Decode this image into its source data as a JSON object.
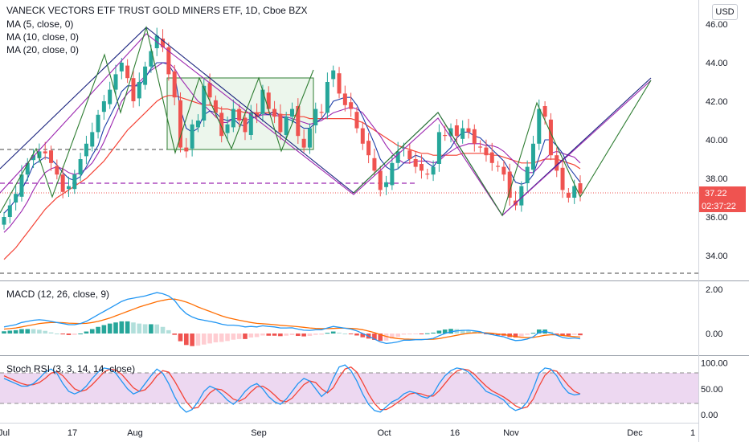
{
  "legend": {
    "title": "VANECK VECTORS ETF TRUST GOLD MINERS ETF, 1D, Cboe BZX",
    "ma5": "MA (5, close, 0)",
    "ma10": "MA (10, close, 0)",
    "ma20": "MA (20, close, 0)",
    "macd": "MACD (12, 26, close, 9)",
    "stoch": "Stoch RSI (3, 3, 14, 14, close)"
  },
  "currency_button": "USD",
  "price_tag": "37.22",
  "countdown_tag": "02:37:22",
  "colors": {
    "up": "#26a69a",
    "down": "#ef5350",
    "ma5": "#1e3ea8",
    "ma10": "#9c27b0",
    "ma20": "#f44336",
    "pattern_blue": "#1a237e",
    "pattern_purple": "#9c27b0",
    "pattern_green": "#2e7d32",
    "macd_line": "#2196f3",
    "signal_line": "#ff6d00",
    "stoch_k": "#2196f3",
    "stoch_d": "#f44336",
    "stoch_band": "#e1bee7",
    "price_tag": "#ef5350"
  },
  "chart_data": [
    {
      "type": "candlestick",
      "title": "VANECK VECTORS ETF TRUST GOLD MINERS ETF, 1D, Cboe BZX",
      "y_ticks": [
        "46.00",
        "44.00",
        "42.00",
        "40.00",
        "38.00",
        "36.00",
        "34.00"
      ],
      "ylim": [
        32.8,
        47.3
      ],
      "x_ticks": [
        "Jul",
        "17",
        "Aug",
        "Sep",
        "Oct",
        "16",
        "Nov",
        "Dec",
        "1"
      ],
      "last_price": 37.22,
      "close": [
        36.0,
        36.6,
        37.2,
        38.2,
        38.8,
        39.2,
        39.4,
        39.3,
        38.8,
        38.2,
        37.3,
        37.6,
        38.2,
        39.0,
        39.8,
        40.4,
        41.3,
        42.0,
        42.6,
        43.4,
        44.0,
        43.2,
        42.0,
        43.0,
        43.8,
        44.6,
        45.4,
        44.8,
        43.4,
        42.2,
        39.6,
        39.4,
        40.8,
        41.0,
        42.8,
        42.2,
        41.4,
        40.2,
        40.8,
        41.6,
        41.0,
        40.4,
        41.4,
        41.2,
        42.6,
        41.6,
        41.2,
        40.4,
        41.2,
        41.6,
        40.2,
        39.6,
        40.6,
        41.6,
        41.4,
        43.0,
        43.6,
        42.4,
        41.8,
        41.6,
        40.6,
        39.8,
        39.2,
        38.4,
        37.4,
        37.8,
        38.8,
        39.4,
        39.6,
        39.0,
        38.6,
        38.4,
        38.2,
        38.6,
        40.4,
        40.2,
        40.6,
        40.2,
        40.6,
        40.4,
        39.8,
        39.6,
        39.2,
        38.8,
        38.6,
        38.2,
        37.0,
        36.6,
        37.6,
        38.6,
        39.8,
        41.6,
        41.2,
        39.2,
        38.4,
        37.4,
        37.0,
        37.6,
        37.22
      ],
      "ma5": [
        36.2,
        36.5,
        36.9,
        37.4,
        38.0,
        38.7,
        38.9,
        39.1,
        39.0,
        38.7,
        38.3,
        38.0,
        37.9,
        38.1,
        38.6,
        39.2,
        39.7,
        40.6,
        41.2,
        41.8,
        42.5,
        42.8,
        42.8,
        42.8,
        43.2,
        43.7,
        44.0,
        44.0,
        43.9,
        43.4,
        41.6,
        40.6,
        40.4,
        40.6,
        41.3,
        41.5,
        41.4,
        41.1,
        41.0,
        41.1,
        40.8,
        40.7,
        41.1,
        41.2,
        41.4,
        41.3,
        41.5,
        41.2,
        41.1,
        41.0,
        40.8,
        40.6,
        40.6,
        40.9,
        41.1,
        41.5,
        42.0,
        42.1,
        42.2,
        42.2,
        41.8,
        41.2,
        40.5,
        39.8,
        39.0,
        38.6,
        38.4,
        38.5,
        38.8,
        39.0,
        39.2,
        39.1,
        38.8,
        38.6,
        39.0,
        39.3,
        39.6,
        40.1,
        40.4,
        40.4,
        40.2,
        40.1,
        39.8,
        39.5,
        39.2,
        38.9,
        38.4,
        37.8,
        37.7,
        37.8,
        38.2,
        39.1,
        40.0,
        40.0,
        39.7,
        39.3,
        38.6,
        38.2,
        37.8
      ],
      "ma10": [
        35.2,
        35.5,
        35.9,
        36.3,
        36.8,
        37.4,
        37.9,
        38.3,
        38.5,
        38.6,
        38.5,
        38.3,
        38.2,
        38.3,
        38.5,
        38.8,
        39.3,
        39.9,
        40.6,
        41.3,
        42.0,
        42.4,
        42.7,
        43.0,
        43.3,
        43.6,
        43.8,
        44.0,
        44.0,
        43.7,
        43.2,
        42.8,
        42.4,
        42.0,
        41.8,
        41.5,
        41.2,
        40.9,
        40.9,
        41.1,
        41.1,
        41.0,
        41.1,
        41.2,
        41.3,
        41.3,
        41.3,
        41.2,
        41.2,
        41.1,
        41.0,
        40.9,
        40.8,
        40.9,
        41.0,
        41.2,
        41.4,
        41.5,
        41.6,
        41.7,
        41.6,
        41.4,
        41.0,
        40.6,
        40.2,
        39.7,
        39.3,
        39.0,
        38.8,
        38.8,
        38.9,
        38.9,
        38.9,
        38.8,
        38.9,
        39.2,
        39.4,
        39.6,
        39.7,
        39.8,
        39.8,
        39.8,
        39.7,
        39.7,
        39.6,
        39.4,
        39.1,
        38.8,
        38.5,
        38.3,
        38.3,
        38.6,
        39.0,
        39.3,
        39.4,
        39.3,
        39.2,
        39.1,
        38.8
      ],
      "ma20": [
        33.8,
        34.1,
        34.4,
        34.8,
        35.2,
        35.6,
        36.0,
        36.4,
        36.7,
        37.0,
        37.2,
        37.4,
        37.6,
        37.8,
        38.0,
        38.3,
        38.6,
        38.9,
        39.3,
        39.7,
        40.1,
        40.5,
        40.8,
        41.1,
        41.4,
        41.7,
        42.0,
        42.2,
        42.3,
        42.3,
        42.2,
        42.1,
        42.0,
        41.9,
        41.8,
        41.8,
        41.7,
        41.6,
        41.6,
        41.5,
        41.5,
        41.4,
        41.4,
        41.4,
        41.4,
        41.4,
        41.4,
        41.3,
        41.3,
        41.3,
        41.2,
        41.2,
        41.1,
        41.1,
        41.1,
        41.1,
        41.1,
        41.1,
        41.1,
        41.1,
        41.0,
        40.9,
        40.7,
        40.5,
        40.3,
        40.1,
        39.9,
        39.7,
        39.6,
        39.5,
        39.4,
        39.3,
        39.3,
        39.2,
        39.2,
        39.2,
        39.2,
        39.2,
        39.3,
        39.3,
        39.3,
        39.3,
        39.3,
        39.2,
        39.2,
        39.1,
        39.0,
        38.9,
        38.8,
        38.8,
        38.8,
        38.9,
        39.0,
        39.0,
        39.0,
        38.9,
        38.8,
        38.7,
        38.5
      ]
    },
    {
      "type": "macd",
      "title": "MACD (12, 26, close, 9)",
      "y_ticks": [
        "2.00",
        "0.00"
      ],
      "ylim": [
        -1.0,
        2.4
      ],
      "macd": [
        0.3,
        0.35,
        0.4,
        0.5,
        0.55,
        0.6,
        0.62,
        0.6,
        0.55,
        0.5,
        0.45,
        0.4,
        0.4,
        0.45,
        0.55,
        0.7,
        0.85,
        1.0,
        1.15,
        1.3,
        1.45,
        1.55,
        1.6,
        1.65,
        1.7,
        1.78,
        1.85,
        1.8,
        1.7,
        1.5,
        1.15,
        0.9,
        0.75,
        0.65,
        0.6,
        0.55,
        0.5,
        0.42,
        0.38,
        0.38,
        0.35,
        0.3,
        0.32,
        0.3,
        0.35,
        0.32,
        0.3,
        0.25,
        0.25,
        0.26,
        0.2,
        0.15,
        0.14,
        0.17,
        0.17,
        0.25,
        0.32,
        0.28,
        0.24,
        0.2,
        0.12,
        0.0,
        -0.12,
        -0.25,
        -0.38,
        -0.45,
        -0.42,
        -0.38,
        -0.3,
        -0.3,
        -0.28,
        -0.28,
        -0.26,
        -0.22,
        -0.1,
        0.0,
        0.08,
        0.12,
        0.14,
        0.15,
        0.12,
        0.08,
        0.0,
        -0.05,
        -0.1,
        -0.15,
        -0.25,
        -0.32,
        -0.3,
        -0.25,
        -0.15,
        0.05,
        0.1,
        0.02,
        -0.08,
        -0.18,
        -0.22,
        -0.2,
        -0.24
      ],
      "signal": [
        0.2,
        0.22,
        0.25,
        0.3,
        0.35,
        0.4,
        0.45,
        0.48,
        0.5,
        0.5,
        0.49,
        0.47,
        0.46,
        0.45,
        0.46,
        0.5,
        0.55,
        0.62,
        0.7,
        0.8,
        0.9,
        1.0,
        1.1,
        1.2,
        1.28,
        1.36,
        1.44,
        1.5,
        1.55,
        1.56,
        1.5,
        1.42,
        1.32,
        1.2,
        1.1,
        1.0,
        0.9,
        0.8,
        0.72,
        0.66,
        0.6,
        0.55,
        0.5,
        0.46,
        0.44,
        0.42,
        0.4,
        0.37,
        0.35,
        0.33,
        0.31,
        0.28,
        0.25,
        0.23,
        0.22,
        0.22,
        0.23,
        0.24,
        0.24,
        0.23,
        0.21,
        0.17,
        0.11,
        0.04,
        -0.05,
        -0.13,
        -0.19,
        -0.23,
        -0.25,
        -0.26,
        -0.27,
        -0.27,
        -0.27,
        -0.26,
        -0.23,
        -0.18,
        -0.13,
        -0.08,
        -0.03,
        0.01,
        0.03,
        0.04,
        0.03,
        0.01,
        -0.02,
        -0.05,
        -0.09,
        -0.14,
        -0.17,
        -0.19,
        -0.18,
        -0.13,
        -0.08,
        -0.06,
        -0.06,
        -0.09,
        -0.12,
        -0.14,
        -0.16
      ]
    },
    {
      "type": "stoch_rsi",
      "title": "Stoch RSI (3, 3, 14, 14, close)",
      "y_ticks": [
        "100.00",
        "50.00",
        "0.00"
      ],
      "ylim": [
        -5,
        115
      ],
      "band": [
        20,
        80
      ],
      "k": [
        70,
        65,
        60,
        55,
        55,
        60,
        70,
        82,
        88,
        80,
        60,
        45,
        40,
        45,
        55,
        70,
        82,
        90,
        88,
        80,
        65,
        50,
        40,
        45,
        60,
        75,
        88,
        80,
        60,
        35,
        15,
        5,
        10,
        25,
        45,
        55,
        50,
        40,
        28,
        20,
        30,
        45,
        55,
        60,
        50,
        35,
        25,
        20,
        30,
        45,
        60,
        70,
        65,
        50,
        35,
        45,
        70,
        92,
        96,
        85,
        65,
        40,
        20,
        8,
        5,
        15,
        25,
        30,
        40,
        45,
        42,
        35,
        32,
        40,
        60,
        75,
        85,
        90,
        88,
        82,
        70,
        58,
        45,
        40,
        35,
        28,
        15,
        8,
        12,
        25,
        50,
        80,
        90,
        88,
        75,
        55,
        42,
        38,
        40
      ],
      "d": [
        75,
        70,
        65,
        60,
        57,
        58,
        62,
        70,
        80,
        83,
        75,
        62,
        50,
        45,
        48,
        58,
        70,
        82,
        88,
        86,
        78,
        65,
        52,
        45,
        48,
        60,
        75,
        85,
        82,
        65,
        45,
        25,
        12,
        14,
        28,
        42,
        50,
        48,
        40,
        30,
        26,
        32,
        44,
        54,
        55,
        48,
        38,
        27,
        25,
        32,
        45,
        58,
        65,
        62,
        50,
        42,
        52,
        72,
        88,
        92,
        82,
        62,
        40,
        22,
        10,
        10,
        16,
        24,
        32,
        40,
        42,
        40,
        36,
        36,
        46,
        60,
        74,
        84,
        88,
        86,
        78,
        66,
        55,
        46,
        40,
        34,
        26,
        17,
        12,
        15,
        30,
        55,
        76,
        86,
        84,
        70,
        56,
        45,
        40
      ]
    }
  ]
}
